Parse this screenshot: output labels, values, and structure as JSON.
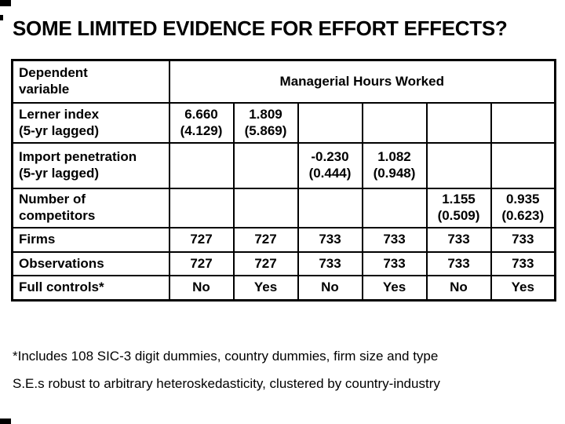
{
  "title": "SOME LIMITED EVIDENCE FOR EFFORT EFFECTS?",
  "table": {
    "corner_header": "Dependent\nvariable",
    "span_header": "Managerial Hours Worked",
    "rows": [
      {
        "label": "Lerner index\n(5-yr lagged)",
        "cells": [
          "6.660\n(4.129)",
          "1.809\n(5.869)",
          "",
          "",
          "",
          ""
        ]
      },
      {
        "label": "Import penetration\n(5-yr lagged)",
        "cells": [
          "",
          "",
          "-0.230\n(0.444)",
          "1.082\n(0.948)",
          "",
          ""
        ]
      },
      {
        "label": "Number of\ncompetitors",
        "cells": [
          "",
          "",
          "",
          "",
          "1.155\n(0.509)",
          "0.935\n(0.623)"
        ]
      },
      {
        "label": "Firms",
        "cells": [
          "727",
          "727",
          "733",
          "733",
          "733",
          "733"
        ]
      },
      {
        "label": "Observations",
        "cells": [
          "727",
          "727",
          "733",
          "733",
          "733",
          "733"
        ]
      },
      {
        "label": "Full controls*",
        "cells": [
          "No",
          "Yes",
          "No",
          "Yes",
          "No",
          "Yes"
        ]
      }
    ]
  },
  "notes": {
    "line1": "*Includes 108 SIC-3 digit dummies, country dummies, firm size and type",
    "line2": "S.E.s robust to arbitrary heteroskedasticity, clustered by country-industry"
  },
  "colors": {
    "text": "#000000",
    "background": "#ffffff",
    "table_border": "#000000",
    "corner_mark": "#000000"
  }
}
